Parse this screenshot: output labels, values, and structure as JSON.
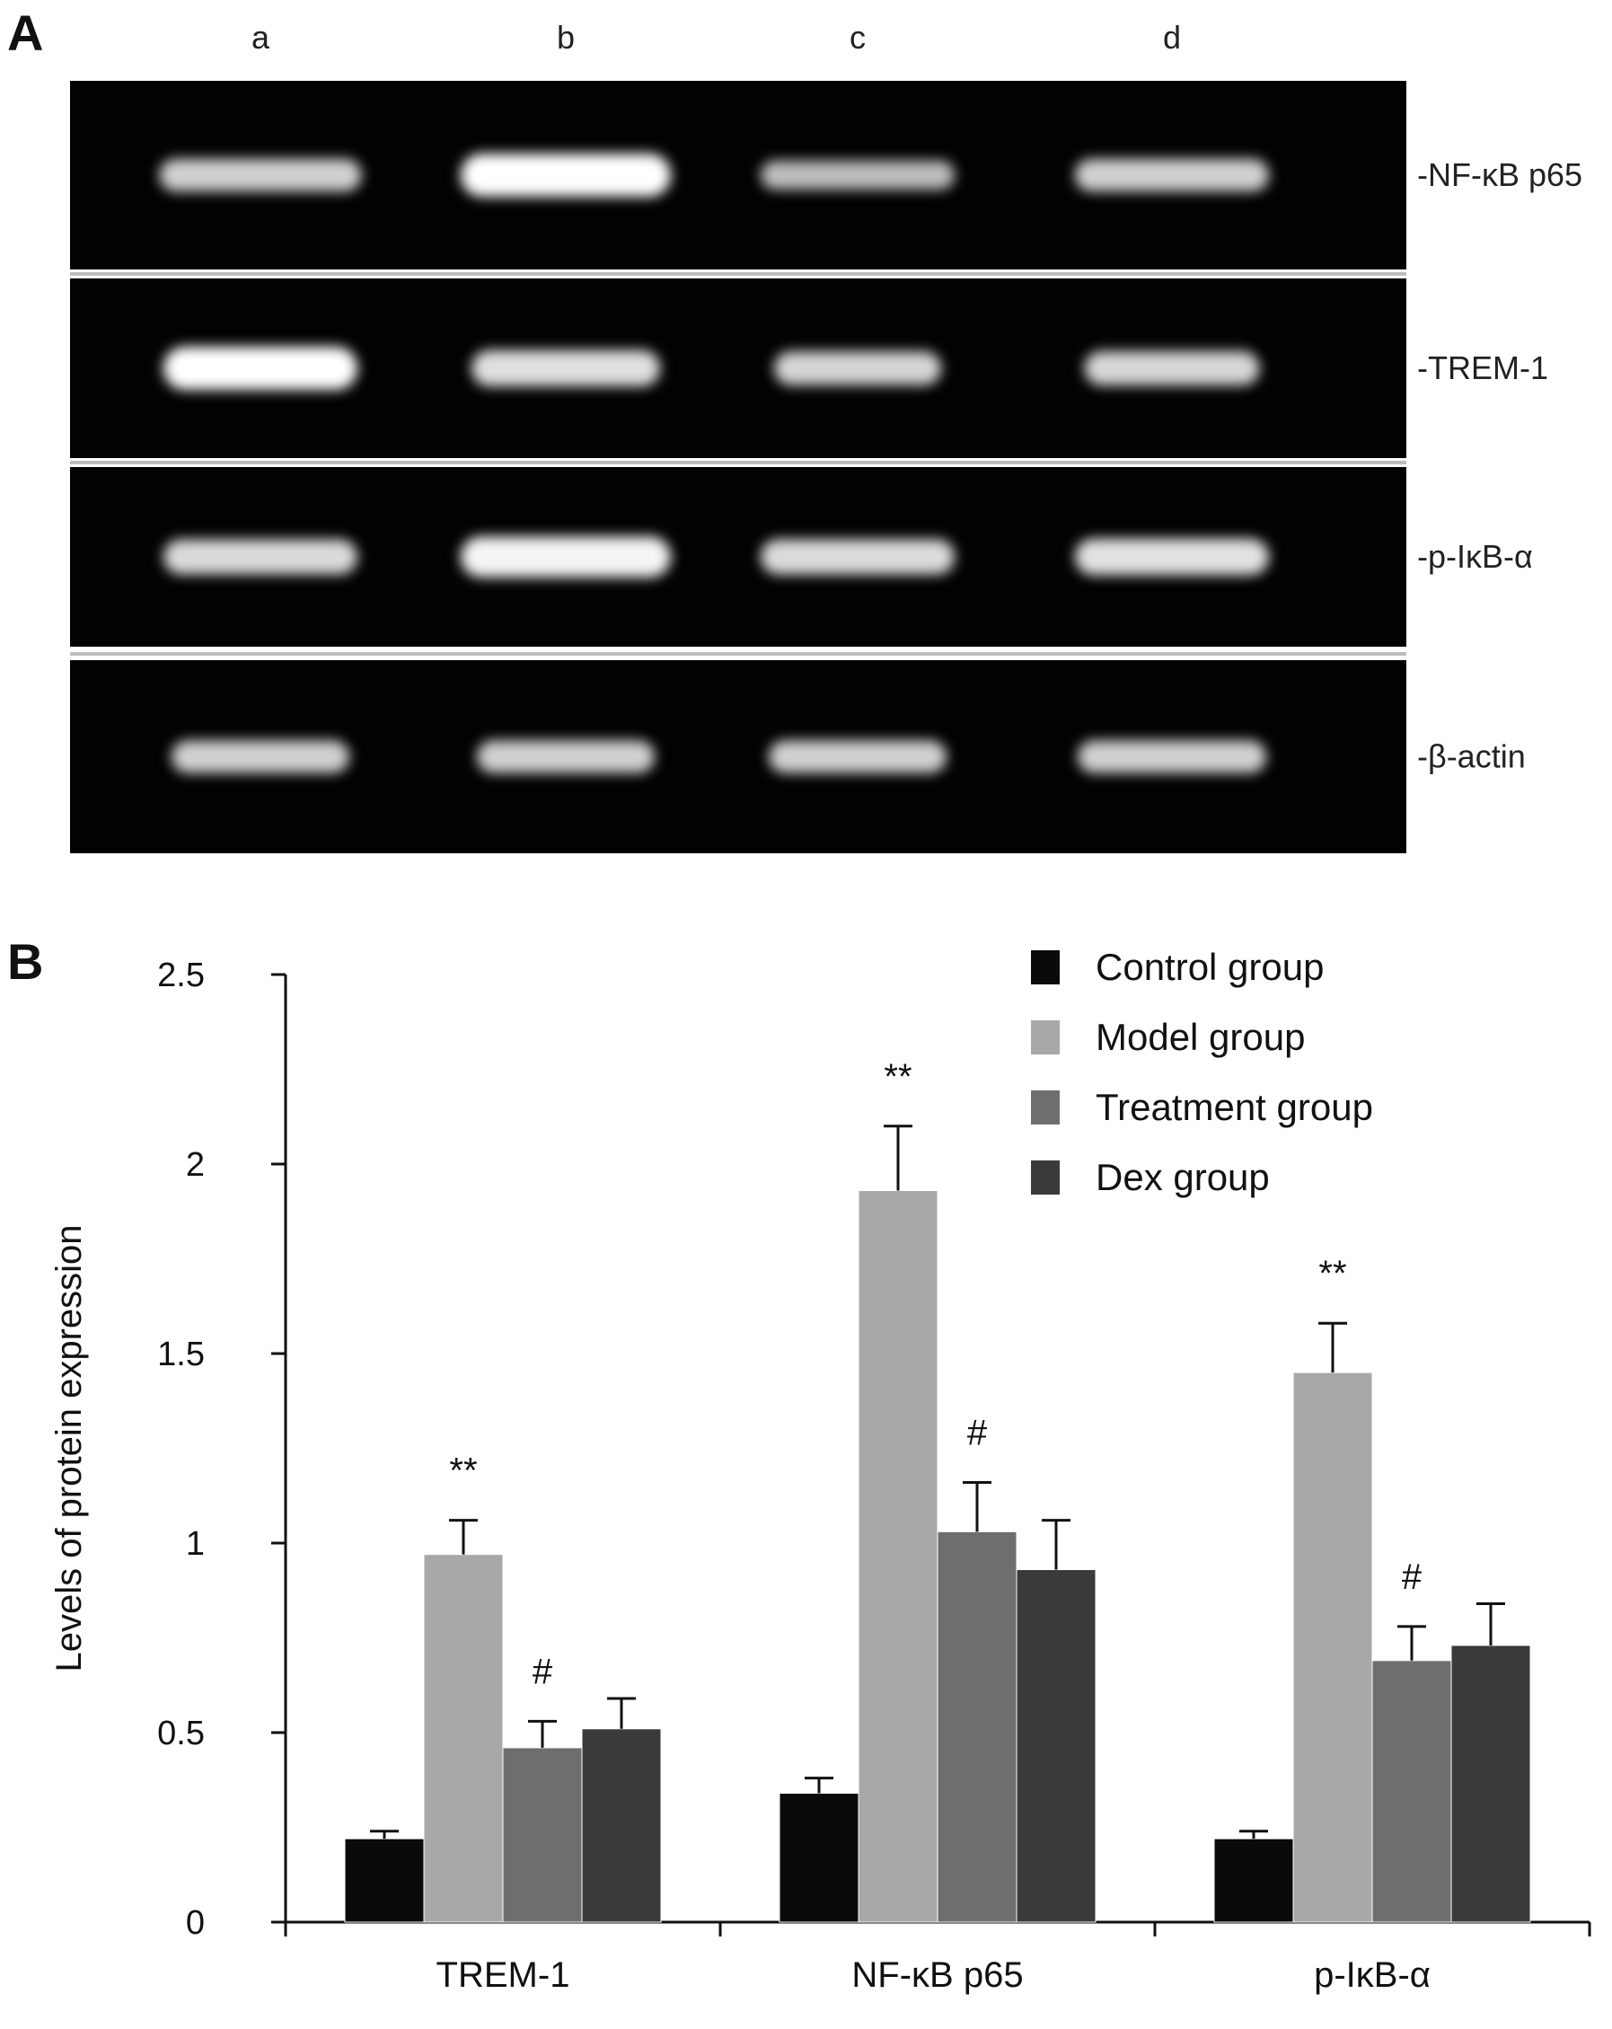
{
  "panel_a": {
    "letter": "A",
    "lanes": [
      "a",
      "b",
      "c",
      "d"
    ],
    "bands": [
      "-NF-κB p65",
      "-TREM-1",
      "-p-IκB-α",
      "-β-actin"
    ],
    "intensities": [
      [
        0.55,
        1.0,
        0.38,
        0.55
      ],
      [
        1.0,
        0.7,
        0.6,
        0.62
      ],
      [
        0.65,
        0.9,
        0.66,
        0.72
      ],
      [
        0.55,
        0.55,
        0.55,
        0.55
      ]
    ],
    "band_widths": [
      [
        0.75,
        0.78,
        0.72,
        0.72
      ],
      [
        0.72,
        0.7,
        0.62,
        0.65
      ],
      [
        0.72,
        0.78,
        0.72,
        0.72
      ],
      [
        0.66,
        0.66,
        0.66,
        0.7
      ]
    ]
  },
  "chart_data": {
    "panel_letter": "B",
    "type": "bar",
    "categories": [
      "TREM-1",
      "NF-κB p65",
      "p-IκB-α"
    ],
    "series": [
      {
        "name": "Control group",
        "values": [
          0.22,
          0.34,
          0.22
        ],
        "errors": [
          0.02,
          0.04,
          0.02
        ],
        "color": "#0a0a0a"
      },
      {
        "name": "Model group",
        "values": [
          0.97,
          1.93,
          1.45
        ],
        "errors": [
          0.09,
          0.17,
          0.13
        ],
        "color": "#a8a8a8"
      },
      {
        "name": "Treatment group",
        "values": [
          0.46,
          1.03,
          0.69
        ],
        "errors": [
          0.07,
          0.13,
          0.09
        ],
        "color": "#6e6e6e"
      },
      {
        "name": "Dex group",
        "values": [
          0.51,
          0.93,
          0.73
        ],
        "errors": [
          0.08,
          0.13,
          0.11
        ],
        "color": "#3a3a3a"
      }
    ],
    "annotations": [
      {
        "category": 0,
        "series": 1,
        "text": "**"
      },
      {
        "category": 0,
        "series": 2,
        "text": "#"
      },
      {
        "category": 1,
        "series": 1,
        "text": "**"
      },
      {
        "category": 1,
        "series": 2,
        "text": "#"
      },
      {
        "category": 2,
        "series": 1,
        "text": "**"
      },
      {
        "category": 2,
        "series": 2,
        "text": "#"
      }
    ],
    "xlabel": "",
    "ylabel": "Levels of protein expression",
    "ylim": [
      0,
      2.5
    ],
    "yticks": [
      "0",
      "0.5",
      "1",
      "1.5",
      "2",
      "2.5"
    ],
    "legend_position": "top-right",
    "grid": false
  }
}
